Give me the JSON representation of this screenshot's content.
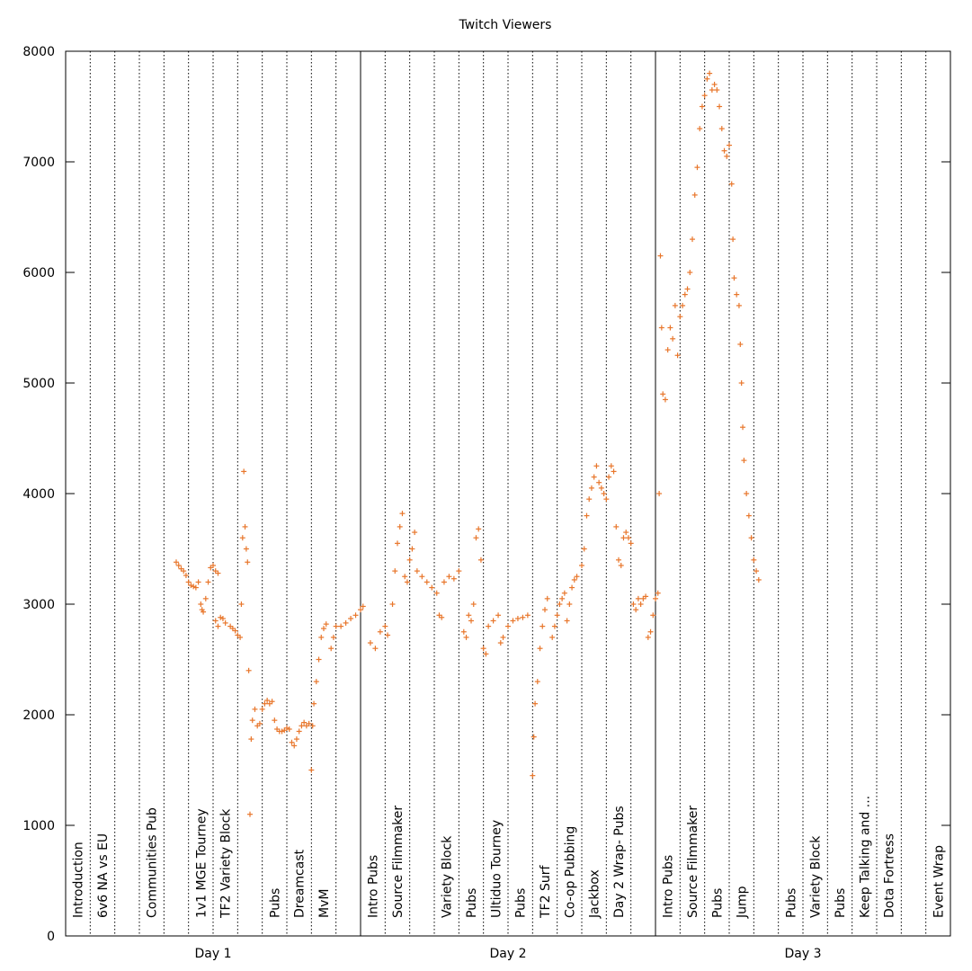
{
  "chart_data": {
    "type": "scatter",
    "title": "Twitch Viewers",
    "xlabel": "",
    "ylabel": "",
    "ylim": [
      0,
      8000
    ],
    "y_ticks": [
      "0",
      "1000",
      "2000",
      "3000",
      "4000",
      "5000",
      "6000",
      "7000",
      "8000"
    ],
    "grid": false,
    "marker": "+",
    "colors": {
      "points": "#e8762b",
      "axes": "#000000"
    },
    "days": [
      {
        "label": "Day 1",
        "segments": [
          "Introduction",
          "6v6 NA vs EU",
          "",
          "Communities Pub",
          "",
          "1v1 MGE Tourney",
          "TF2 Variety Block",
          "",
          "Pubs",
          "Dreamcast",
          "MvM"
        ]
      },
      {
        "label": "Day 2",
        "segments": [
          "Intro Pubs",
          "Source Filmmaker",
          "",
          "Variety Block",
          "Pubs",
          "Ultiduo Tourney",
          "Pubs",
          "TF2 Surf",
          "Co-op Pubbing",
          "Jackbox",
          "Day 2 Wrap- Pubs"
        ]
      },
      {
        "label": "Day 3",
        "segments": [
          "Intro Pubs",
          "Source Filmmaker",
          "Pubs",
          "Jump",
          "",
          "Pubs",
          "Variety Block",
          "Pubs",
          "Keep Talking and ...",
          "Dota Fortress",
          "",
          "Event Wrap"
        ]
      }
    ],
    "series": [
      {
        "name": "",
        "points": [
          [
            4.5,
            3380
          ],
          [
            4.6,
            3350
          ],
          [
            4.7,
            3320
          ],
          [
            4.8,
            3300
          ],
          [
            4.9,
            3260
          ],
          [
            5.0,
            3200
          ],
          [
            5.1,
            3170
          ],
          [
            5.2,
            3160
          ],
          [
            5.3,
            3150
          ],
          [
            5.4,
            3200
          ],
          [
            5.5,
            3000
          ],
          [
            5.55,
            2950
          ],
          [
            5.6,
            2930
          ],
          [
            5.7,
            3050
          ],
          [
            5.8,
            3200
          ],
          [
            5.9,
            3330
          ],
          [
            6.0,
            3350
          ],
          [
            6.1,
            3300
          ],
          [
            6.2,
            3280
          ],
          [
            6.1,
            2850
          ],
          [
            6.2,
            2800
          ],
          [
            6.3,
            2880
          ],
          [
            6.4,
            2870
          ],
          [
            6.5,
            2830
          ],
          [
            6.7,
            2800
          ],
          [
            6.8,
            2780
          ],
          [
            6.9,
            2760
          ],
          [
            7.0,
            2720
          ],
          [
            7.1,
            2700
          ],
          [
            7.15,
            3000
          ],
          [
            7.2,
            3600
          ],
          [
            7.25,
            4200
          ],
          [
            7.3,
            3700
          ],
          [
            7.35,
            3500
          ],
          [
            7.4,
            3380
          ],
          [
            7.45,
            2400
          ],
          [
            7.5,
            1100
          ],
          [
            7.55,
            1780
          ],
          [
            7.6,
            1950
          ],
          [
            7.7,
            2050
          ],
          [
            7.8,
            1900
          ],
          [
            7.9,
            1920
          ],
          [
            8.0,
            2050
          ],
          [
            8.1,
            2100
          ],
          [
            8.2,
            2130
          ],
          [
            8.3,
            2100
          ],
          [
            8.4,
            2120
          ],
          [
            8.5,
            1950
          ],
          [
            8.6,
            1870
          ],
          [
            8.7,
            1850
          ],
          [
            8.8,
            1850
          ],
          [
            8.9,
            1860
          ],
          [
            9.0,
            1880
          ],
          [
            9.1,
            1870
          ],
          [
            9.2,
            1750
          ],
          [
            9.3,
            1720
          ],
          [
            9.4,
            1780
          ],
          [
            9.5,
            1850
          ],
          [
            9.6,
            1900
          ],
          [
            9.7,
            1930
          ],
          [
            9.8,
            1900
          ],
          [
            9.9,
            1920
          ],
          [
            10.0,
            1500
          ],
          [
            10.05,
            1900
          ],
          [
            10.1,
            2100
          ],
          [
            10.2,
            2300
          ],
          [
            10.3,
            2500
          ],
          [
            10.4,
            2700
          ],
          [
            10.5,
            2780
          ],
          [
            10.6,
            2820
          ],
          [
            10.8,
            2600
          ],
          [
            10.9,
            2700
          ],
          [
            11.0,
            2800
          ],
          [
            11.2,
            2800
          ],
          [
            11.4,
            2830
          ],
          [
            11.6,
            2870
          ],
          [
            11.8,
            2900
          ],
          [
            12.0,
            2950
          ],
          [
            12.1,
            2980
          ],
          [
            12.4,
            2650
          ],
          [
            12.6,
            2600
          ],
          [
            12.8,
            2750
          ],
          [
            13.0,
            2800
          ],
          [
            13.1,
            2720
          ],
          [
            13.3,
            3000
          ],
          [
            13.4,
            3300
          ],
          [
            13.5,
            3550
          ],
          [
            13.6,
            3700
          ],
          [
            13.7,
            3820
          ],
          [
            13.8,
            3250
          ],
          [
            13.9,
            3200
          ],
          [
            14.0,
            3400
          ],
          [
            14.1,
            3500
          ],
          [
            14.2,
            3650
          ],
          [
            14.3,
            3300
          ],
          [
            14.5,
            3250
          ],
          [
            14.7,
            3200
          ],
          [
            14.9,
            3150
          ],
          [
            15.1,
            3100
          ],
          [
            15.2,
            2900
          ],
          [
            15.3,
            2880
          ],
          [
            15.4,
            3200
          ],
          [
            15.6,
            3250
          ],
          [
            15.8,
            3230
          ],
          [
            16.0,
            3300
          ],
          [
            16.2,
            2750
          ],
          [
            16.3,
            2700
          ],
          [
            16.4,
            2900
          ],
          [
            16.5,
            2850
          ],
          [
            16.6,
            3000
          ],
          [
            16.7,
            3600
          ],
          [
            16.8,
            3680
          ],
          [
            16.9,
            3400
          ],
          [
            17.0,
            2600
          ],
          [
            17.1,
            2550
          ],
          [
            17.2,
            2800
          ],
          [
            17.4,
            2850
          ],
          [
            17.6,
            2900
          ],
          [
            17.7,
            2650
          ],
          [
            17.8,
            2700
          ],
          [
            18.0,
            2800
          ],
          [
            18.2,
            2850
          ],
          [
            18.4,
            2870
          ],
          [
            18.6,
            2880
          ],
          [
            18.8,
            2900
          ],
          [
            19.0,
            1450
          ],
          [
            19.05,
            1800
          ],
          [
            19.1,
            2100
          ],
          [
            19.2,
            2300
          ],
          [
            19.3,
            2600
          ],
          [
            19.4,
            2800
          ],
          [
            19.5,
            2950
          ],
          [
            19.6,
            3050
          ],
          [
            19.8,
            2700
          ],
          [
            19.9,
            2800
          ],
          [
            20.0,
            2900
          ],
          [
            20.1,
            3000
          ],
          [
            20.2,
            3050
          ],
          [
            20.3,
            3100
          ],
          [
            20.4,
            2850
          ],
          [
            20.5,
            3000
          ],
          [
            20.6,
            3150
          ],
          [
            20.7,
            3220
          ],
          [
            20.8,
            3250
          ],
          [
            21.0,
            3350
          ],
          [
            21.1,
            3500
          ],
          [
            21.2,
            3800
          ],
          [
            21.3,
            3950
          ],
          [
            21.4,
            4050
          ],
          [
            21.5,
            4150
          ],
          [
            21.6,
            4250
          ],
          [
            21.7,
            4100
          ],
          [
            21.8,
            4050
          ],
          [
            21.9,
            4000
          ],
          [
            22.0,
            3950
          ],
          [
            22.1,
            4150
          ],
          [
            22.2,
            4250
          ],
          [
            22.3,
            4200
          ],
          [
            22.4,
            3700
          ],
          [
            22.5,
            3400
          ],
          [
            22.6,
            3350
          ],
          [
            22.7,
            3600
          ],
          [
            22.8,
            3650
          ],
          [
            22.9,
            3600
          ],
          [
            23.0,
            3550
          ],
          [
            23.1,
            3000
          ],
          [
            23.2,
            2950
          ],
          [
            23.3,
            3050
          ],
          [
            23.4,
            3000
          ],
          [
            23.5,
            3050
          ],
          [
            23.6,
            3070
          ],
          [
            23.7,
            2700
          ],
          [
            23.8,
            2750
          ],
          [
            23.9,
            2900
          ],
          [
            24.0,
            3050
          ],
          [
            24.1,
            3100
          ],
          [
            24.15,
            4000
          ],
          [
            24.2,
            6150
          ],
          [
            24.25,
            5500
          ],
          [
            24.3,
            4900
          ],
          [
            24.4,
            4850
          ],
          [
            24.5,
            5300
          ],
          [
            24.6,
            5500
          ],
          [
            24.7,
            5400
          ],
          [
            24.8,
            5700
          ],
          [
            24.9,
            5250
          ],
          [
            25.0,
            5600
          ],
          [
            25.1,
            5700
          ],
          [
            25.2,
            5800
          ],
          [
            25.3,
            5850
          ],
          [
            25.4,
            6000
          ],
          [
            25.5,
            6300
          ],
          [
            25.6,
            6700
          ],
          [
            25.7,
            6950
          ],
          [
            25.8,
            7300
          ],
          [
            25.9,
            7500
          ],
          [
            26.0,
            7600
          ],
          [
            26.1,
            7750
          ],
          [
            26.2,
            7800
          ],
          [
            26.3,
            7650
          ],
          [
            26.4,
            7700
          ],
          [
            26.5,
            7650
          ],
          [
            26.6,
            7500
          ],
          [
            26.7,
            7300
          ],
          [
            26.8,
            7100
          ],
          [
            26.9,
            7050
          ],
          [
            27.0,
            7150
          ],
          [
            27.1,
            6800
          ],
          [
            27.15,
            6300
          ],
          [
            27.2,
            5950
          ],
          [
            27.3,
            5800
          ],
          [
            27.4,
            5700
          ],
          [
            27.45,
            5350
          ],
          [
            27.5,
            5000
          ],
          [
            27.55,
            4600
          ],
          [
            27.6,
            4300
          ],
          [
            27.7,
            4000
          ],
          [
            27.8,
            3800
          ],
          [
            27.9,
            3600
          ],
          [
            28.0,
            3400
          ],
          [
            28.1,
            3300
          ],
          [
            28.2,
            3220
          ]
        ]
      }
    ]
  }
}
